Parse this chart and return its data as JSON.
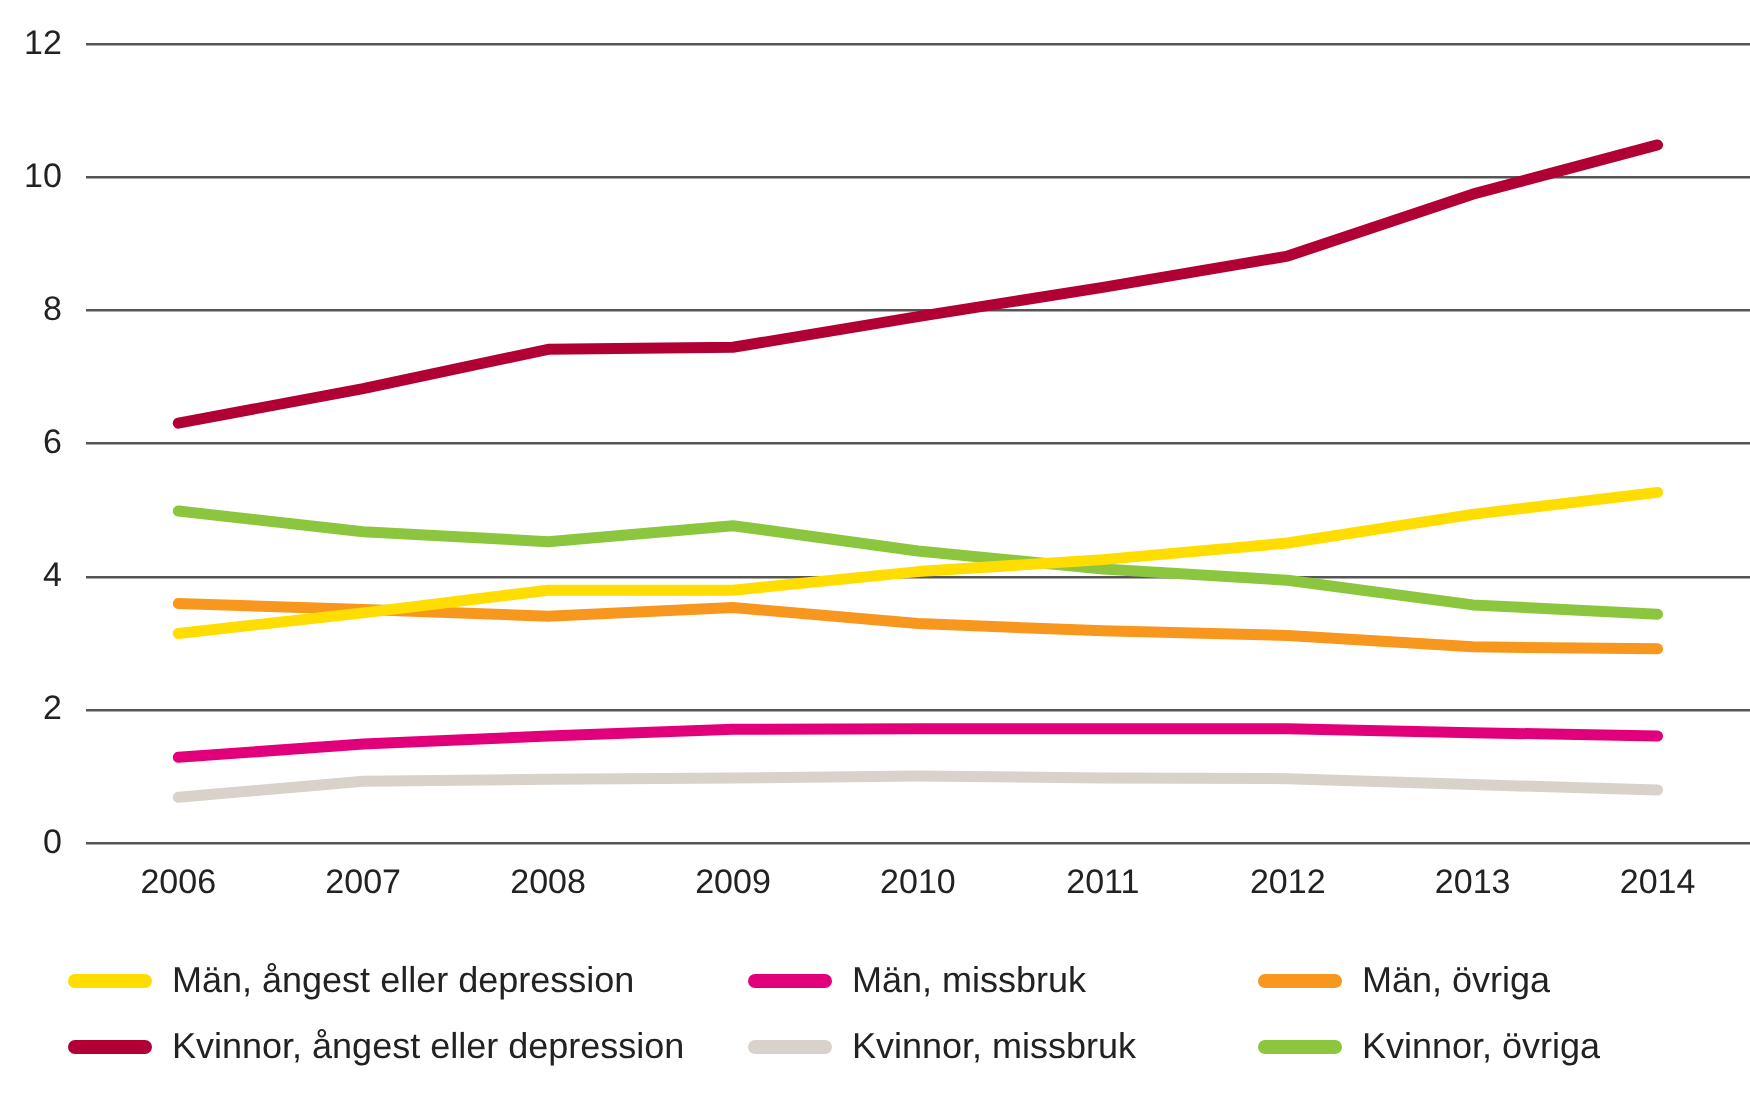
{
  "chart_data": {
    "type": "line",
    "categories": [
      "2006",
      "2007",
      "2008",
      "2009",
      "2010",
      "2011",
      "2012",
      "2013",
      "2014"
    ],
    "ylim": [
      0,
      12
    ],
    "yticks": [
      0,
      2,
      4,
      6,
      8,
      10,
      12
    ],
    "grid": "y",
    "legend": "bottom",
    "marker": "none",
    "line_style": "solid",
    "series": [
      {
        "name": "Män, ångest eller depression",
        "color": "#ffdd00",
        "values": [
          3.15,
          3.46,
          3.8,
          3.8,
          4.08,
          4.26,
          4.51,
          4.94,
          5.27
        ]
      },
      {
        "name": "Män, missbruk",
        "color": "#e2007a",
        "values": [
          1.29,
          1.49,
          1.61,
          1.71,
          1.72,
          1.72,
          1.72,
          1.66,
          1.61
        ]
      },
      {
        "name": "Män, övriga",
        "color": "#f7971e",
        "values": [
          3.6,
          3.51,
          3.41,
          3.54,
          3.3,
          3.19,
          3.12,
          2.95,
          2.92
        ]
      },
      {
        "name": "Kvinnor, ångest eller depression",
        "color": "#b10034",
        "values": [
          6.31,
          6.83,
          7.42,
          7.45,
          7.91,
          8.35,
          8.82,
          9.75,
          10.49
        ]
      },
      {
        "name": "Kvinnor, missbruk",
        "color": "#d8d2ca",
        "values": [
          0.69,
          0.93,
          0.96,
          0.98,
          1.01,
          0.98,
          0.97,
          0.88,
          0.8
        ]
      },
      {
        "name": "Kvinnor, övriga",
        "color": "#8cc63f",
        "values": [
          4.99,
          4.68,
          4.53,
          4.77,
          4.39,
          4.12,
          3.95,
          3.58,
          3.44
        ]
      }
    ]
  }
}
